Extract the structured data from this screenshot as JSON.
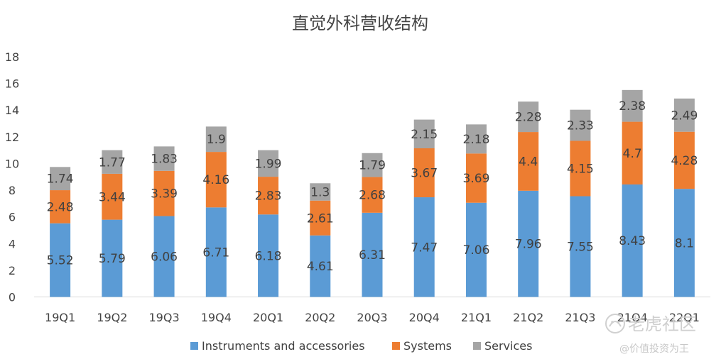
{
  "chart_data": {
    "type": "bar",
    "stacked": true,
    "title": "直觉外科营收结构",
    "xlabel": "",
    "ylabel": "",
    "ylim": [
      0,
      18
    ],
    "yticks": [
      0,
      2,
      4,
      6,
      8,
      10,
      12,
      14,
      16,
      18
    ],
    "grid": false,
    "legend_position": "bottom",
    "categories": [
      "19Q1",
      "19Q2",
      "19Q3",
      "19Q4",
      "20Q1",
      "20Q2",
      "20Q3",
      "20Q4",
      "21Q1",
      "21Q2",
      "21Q3",
      "21Q4",
      "22Q1"
    ],
    "series": [
      {
        "name": "Instruments and accessories",
        "color": "#5b9bd5",
        "values": [
          5.52,
          5.79,
          6.06,
          6.71,
          6.18,
          4.61,
          6.31,
          7.47,
          7.06,
          7.96,
          7.55,
          8.43,
          8.1
        ]
      },
      {
        "name": "Systems",
        "color": "#ed7d31",
        "values": [
          2.48,
          3.44,
          3.39,
          4.16,
          2.83,
          2.61,
          2.68,
          3.67,
          3.69,
          4.4,
          4.15,
          4.7,
          4.28
        ]
      },
      {
        "name": "Services",
        "color": "#a5a5a5",
        "values": [
          1.74,
          1.77,
          1.83,
          1.9,
          1.99,
          1.3,
          1.79,
          2.15,
          2.18,
          2.28,
          2.33,
          2.38,
          2.49
        ]
      }
    ]
  },
  "watermark": {
    "logo_icon": "tiger-logo-icon",
    "brand": "老虎社区",
    "author": "@价值投资为王"
  }
}
